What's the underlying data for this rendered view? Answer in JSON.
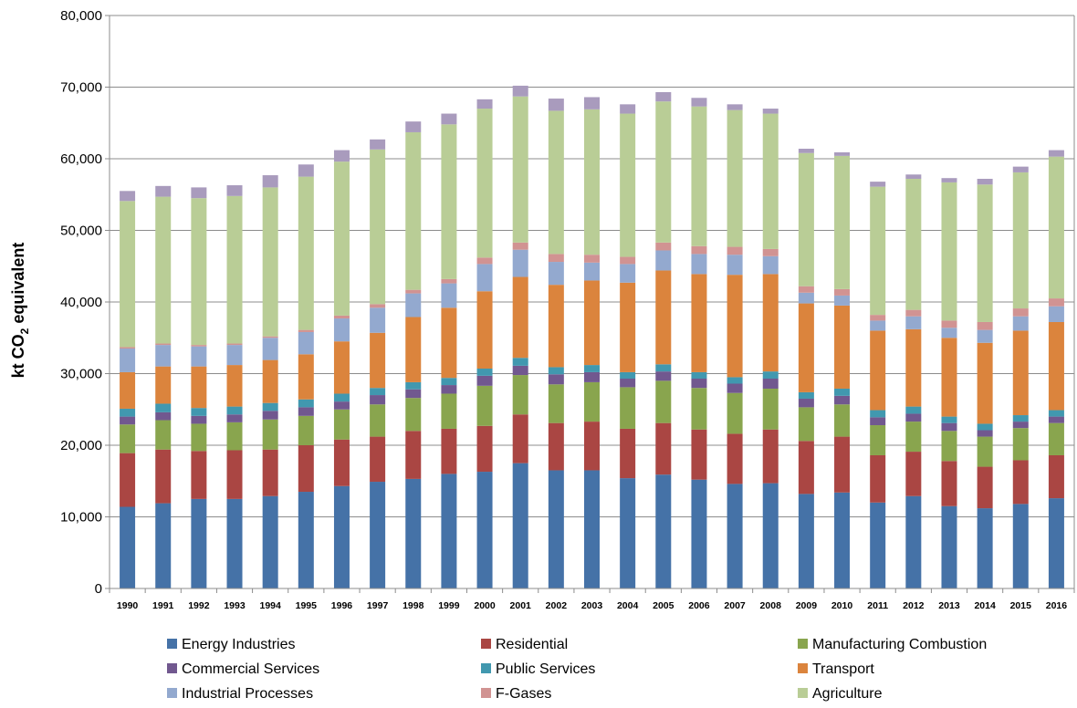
{
  "chart_data": {
    "type": "bar",
    "stacked": true,
    "title": "",
    "xlabel": "",
    "ylabel": {
      "prefix": "kt CO",
      "subscript": "2",
      "suffix": " equivalent"
    },
    "ylim": [
      0,
      80000
    ],
    "yticks": [
      0,
      10000,
      20000,
      30000,
      40000,
      50000,
      60000,
      70000,
      80000
    ],
    "ytick_labels": [
      "0",
      "10,000",
      "20,000",
      "30,000",
      "40,000",
      "50,000",
      "60,000",
      "70,000",
      "80,000"
    ],
    "grid": true,
    "legend_position": "bottom",
    "categories": [
      "1990",
      "1991",
      "1992",
      "1993",
      "1994",
      "1995",
      "1996",
      "1997",
      "1998",
      "1999",
      "2000",
      "2001",
      "2002",
      "2003",
      "2004",
      "2005",
      "2006",
      "2007",
      "2008",
      "2009",
      "2010",
      "2011",
      "2012",
      "2013",
      "2014",
      "2015",
      "2016"
    ],
    "series": [
      {
        "name": "Energy Industries",
        "color": "#4572A7",
        "values": [
          11400,
          11900,
          12500,
          12500,
          12900,
          13500,
          14300,
          14900,
          15300,
          16000,
          16300,
          17500,
          16500,
          16500,
          15400,
          15900,
          15200,
          14600,
          14700,
          13200,
          13400,
          12000,
          12900,
          11500,
          11200,
          11800,
          12600
        ]
      },
      {
        "name": "Residential",
        "color": "#AA4643",
        "values": [
          7500,
          7500,
          6700,
          6800,
          6500,
          6500,
          6500,
          6300,
          6700,
          6300,
          6400,
          6800,
          6600,
          6800,
          6900,
          7200,
          7000,
          7000,
          7500,
          7400,
          7800,
          6600,
          6200,
          6300,
          5800,
          6100,
          6000
        ]
      },
      {
        "name": "Manufacturing Combustion",
        "color": "#89A54E",
        "values": [
          4000,
          4100,
          3800,
          3900,
          4200,
          4100,
          4200,
          4500,
          4600,
          4900,
          5600,
          5500,
          5400,
          5500,
          5800,
          5900,
          5800,
          5700,
          5700,
          4700,
          4500,
          4200,
          4200,
          4200,
          4200,
          4500,
          4500
        ]
      },
      {
        "name": "Commercial Services",
        "color": "#71588F",
        "values": [
          1100,
          1100,
          1100,
          1100,
          1200,
          1200,
          1100,
          1300,
          1200,
          1200,
          1400,
          1300,
          1400,
          1400,
          1200,
          1300,
          1300,
          1300,
          1400,
          1200,
          1200,
          1100,
          1100,
          1100,
          900,
          900,
          900
        ]
      },
      {
        "name": "Public Services",
        "color": "#4198AF",
        "values": [
          1100,
          1200,
          1100,
          1100,
          1100,
          1100,
          1100,
          1000,
          1000,
          1000,
          1000,
          1100,
          1000,
          1000,
          900,
          1000,
          900,
          900,
          1000,
          900,
          1000,
          1000,
          1000,
          900,
          900,
          900,
          900
        ]
      },
      {
        "name": "Transport",
        "color": "#DB843D",
        "values": [
          5100,
          5200,
          5800,
          5800,
          6000,
          6300,
          7300,
          7700,
          9100,
          9800,
          10800,
          11300,
          11500,
          11800,
          12500,
          13100,
          13700,
          14300,
          13600,
          12400,
          11600,
          11100,
          10800,
          11000,
          11300,
          11800,
          12300
        ]
      },
      {
        "name": "Industrial Processes",
        "color": "#93A9CF",
        "values": [
          3300,
          3000,
          2800,
          2800,
          3100,
          3100,
          3200,
          3500,
          3300,
          3400,
          3800,
          3800,
          3200,
          2500,
          2600,
          2800,
          2800,
          2800,
          2500,
          1500,
          1400,
          1400,
          1800,
          1400,
          1800,
          2000,
          2200
        ]
      },
      {
        "name": "F-Gases",
        "color": "#D19392",
        "values": [
          200,
          200,
          200,
          200,
          200,
          300,
          400,
          500,
          500,
          600,
          900,
          1000,
          1100,
          1100,
          1000,
          1100,
          1100,
          1100,
          1000,
          900,
          900,
          800,
          900,
          1000,
          1100,
          1100,
          1100
        ]
      },
      {
        "name": "Agriculture",
        "color": "#B9CD96",
        "values": [
          20400,
          20500,
          20500,
          20600,
          20800,
          21400,
          21500,
          21600,
          22000,
          21600,
          20800,
          20400,
          20000,
          20300,
          20000,
          19700,
          19500,
          19100,
          18900,
          18600,
          18600,
          17900,
          18300,
          19300,
          19200,
          19000,
          19800
        ]
      },
      {
        "name": "",
        "color": "#A99BBD",
        "values": [
          1400,
          1500,
          1500,
          1500,
          1700,
          1700,
          1600,
          1400,
          1500,
          1500,
          1300,
          1500,
          1700,
          1700,
          1300,
          1300,
          1200,
          800,
          700,
          600,
          500,
          700,
          600,
          600,
          800,
          800,
          900
        ]
      }
    ]
  }
}
